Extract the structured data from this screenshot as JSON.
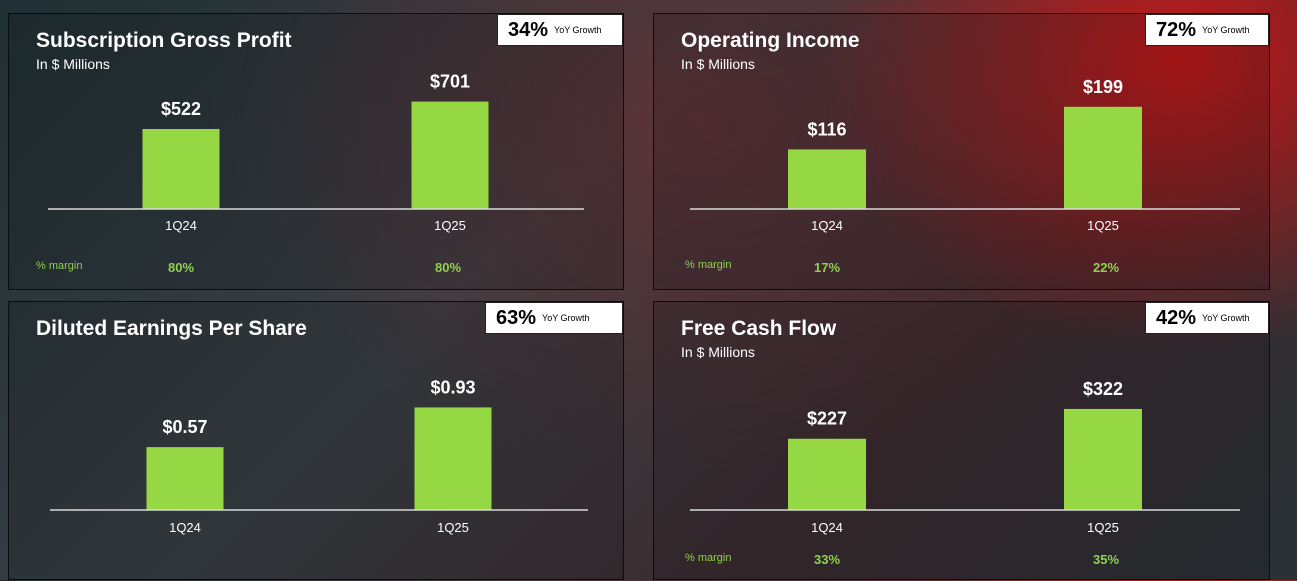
{
  "theme": {
    "bar_color": "#95d843",
    "accent_green": "#8fd14f",
    "background_red": "#dc1414"
  },
  "chart_data": [
    {
      "type": "bar",
      "title": "Subscription Gross Profit",
      "subtitle": "In $ Millions",
      "growth": {
        "value": "34%",
        "label": "YoY Growth"
      },
      "categories": [
        "1Q24",
        "1Q25"
      ],
      "values": [
        522,
        701
      ],
      "value_labels": [
        "$522",
        "$701"
      ],
      "ylim": [
        0,
        770
      ],
      "margin": {
        "label": "% margin",
        "values": [
          "80%",
          "80%"
        ]
      }
    },
    {
      "type": "bar",
      "title": "Operating Income",
      "subtitle": "In $ Millions",
      "growth": {
        "value": "72%",
        "label": "YoY Growth"
      },
      "categories": [
        "1Q24",
        "1Q25"
      ],
      "values": [
        116,
        199
      ],
      "value_labels": [
        "$116",
        "$199"
      ],
      "ylim": [
        0,
        220
      ],
      "margin": {
        "label": "% margin",
        "values": [
          "17%",
          "22%"
        ]
      }
    },
    {
      "type": "bar",
      "title": "Diluted Earnings Per Share",
      "subtitle": "",
      "growth": {
        "value": "63%",
        "label": "YoY Growth"
      },
      "categories": [
        "1Q24",
        "1Q25"
      ],
      "values": [
        0.57,
        0.93
      ],
      "value_labels": [
        "$0.57",
        "$0.93"
      ],
      "ylim": [
        0,
        1.07
      ],
      "margin": null
    },
    {
      "type": "bar",
      "title": "Free Cash Flow",
      "subtitle": "In $ Millions",
      "growth": {
        "value": "42%",
        "label": "YoY Growth"
      },
      "categories": [
        "1Q24",
        "1Q25"
      ],
      "values": [
        227,
        322
      ],
      "value_labels": [
        "$227",
        "$322"
      ],
      "ylim": [
        0,
        360
      ],
      "margin": {
        "label": "% margin",
        "values": [
          "33%",
          "35%"
        ]
      }
    }
  ]
}
